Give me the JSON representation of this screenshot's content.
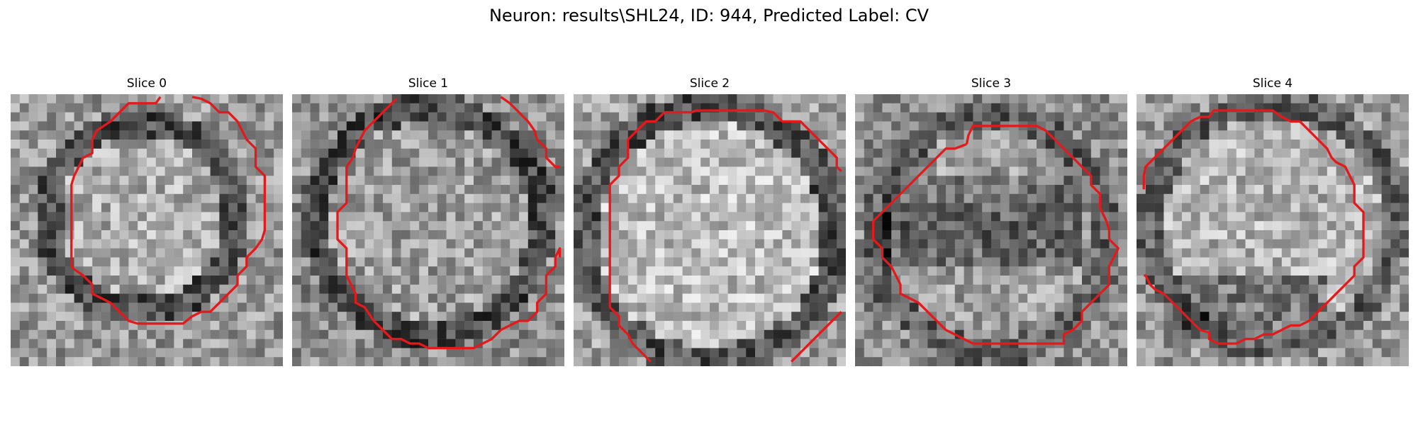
{
  "figure": {
    "title": "Neuron: results\\SHL24, ID: 944, Predicted Label: CV"
  },
  "style": {
    "contour_color": "#e31a1c"
  },
  "panels": [
    {
      "title": "Slice 0"
    },
    {
      "title": "Slice 1"
    },
    {
      "title": "Slice 2"
    },
    {
      "title": "Slice 3"
    },
    {
      "title": "Slice 4"
    }
  ]
}
